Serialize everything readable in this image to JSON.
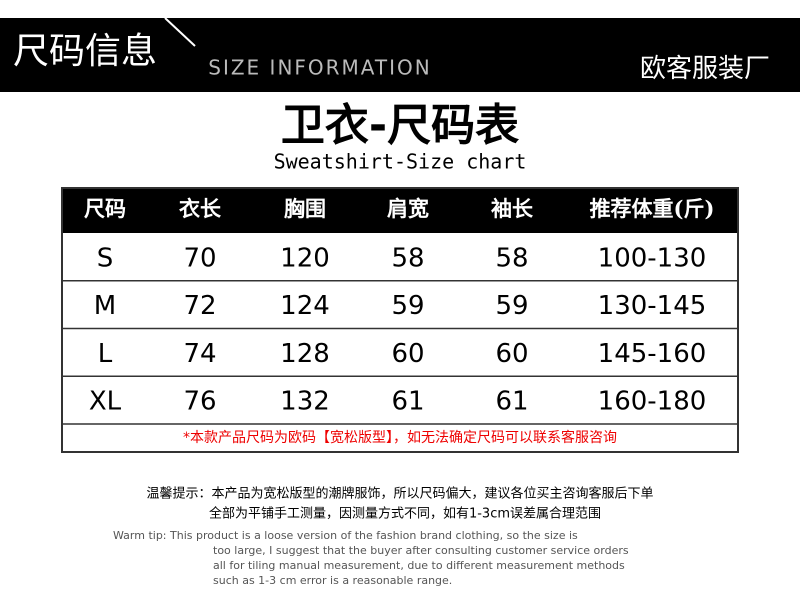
{
  "banner": {
    "title_cn": "尺码信息",
    "title_en": "SIZE INFORMATION",
    "brand": "欧客服装厂"
  },
  "heading": {
    "title": "卫衣-尺码表",
    "subtitle": "Sweatshirt-Size chart"
  },
  "table": {
    "columns": [
      "尺码",
      "衣长",
      "胸围",
      "肩宽",
      "袖长",
      "推荐体重(斤)"
    ],
    "rows": [
      [
        "S",
        "70",
        "120",
        "58",
        "58",
        "100-130"
      ],
      [
        "M",
        "72",
        "124",
        "59",
        "59",
        "130-145"
      ],
      [
        "L",
        "74",
        "128",
        "60",
        "60",
        "145-160"
      ],
      [
        "XL",
        "76",
        "132",
        "61",
        "61",
        "160-180"
      ]
    ],
    "note": "*本款产品尺码为欧码【宽松版型】，如无法确定尺码可以联系客服咨询"
  },
  "tips": {
    "cn": [
      "温馨提示：本产品为宽松版型的潮牌服饰，所以尺码偏大，建议各位买主咨询客服后下单",
      "全部为平铺手工测量，因测量方式不同，如有1-3cm误差属合理范围"
    ],
    "en": [
      "Warm tip: This product is a loose version of the fashion brand clothing, so the size is",
      "too large, I suggest that the buyer after consulting customer service orders",
      "all for tiling manual measurement, due to different measurement methods",
      "such as 1-3 cm error is a reasonable range."
    ]
  }
}
